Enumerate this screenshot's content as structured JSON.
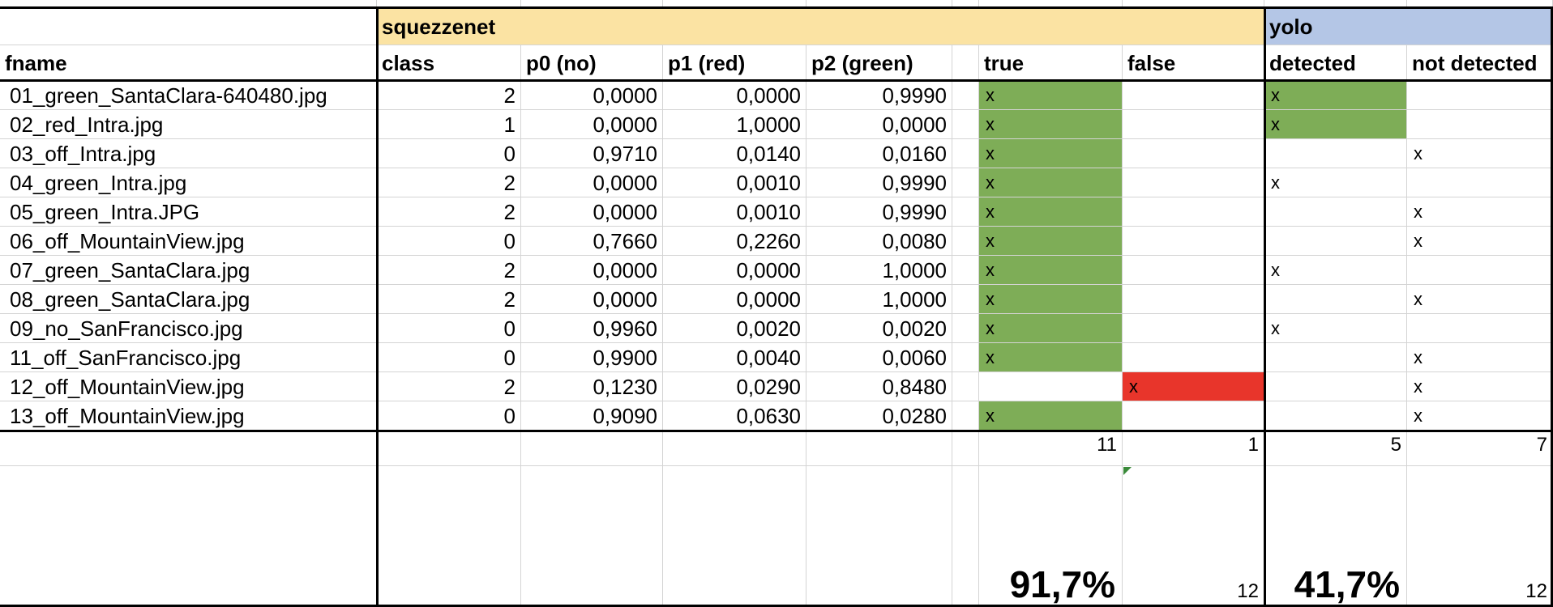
{
  "colors": {
    "squeezenet_header": "#fbe3a3",
    "yolo_header": "#b4c6e6",
    "true_fill": "#7ead57",
    "false_fill": "#e8352b",
    "grid": "#d4d4d4"
  },
  "groups": {
    "squeezenet": "squezzenet",
    "yolo": "yolo"
  },
  "headers": [
    "fname",
    "class",
    "p0 (no)",
    "p1 (red)",
    "p2 (green)",
    "true",
    "false",
    "detected",
    "not detected"
  ],
  "rows": [
    {
      "fname": "01_green_SantaClara-640480.jpg",
      "cls": "2",
      "p0": "0,0000",
      "p1": "0,0000",
      "p2": "0,9990",
      "tru": "x",
      "fal": "",
      "det": "x",
      "nd": "",
      "det_fill": true
    },
    {
      "fname": "02_red_Intra.jpg",
      "cls": "1",
      "p0": "0,0000",
      "p1": "1,0000",
      "p2": "0,0000",
      "tru": "x",
      "fal": "",
      "det": "x",
      "nd": "",
      "det_fill": true
    },
    {
      "fname": "03_off_Intra.jpg",
      "cls": "0",
      "p0": "0,9710",
      "p1": "0,0140",
      "p2": "0,0160",
      "tru": "x",
      "fal": "",
      "det": "",
      "nd": "x",
      "det_fill": false
    },
    {
      "fname": "04_green_Intra.jpg",
      "cls": "2",
      "p0": "0,0000",
      "p1": "0,0010",
      "p2": "0,9990",
      "tru": "x",
      "fal": "",
      "det": "x",
      "nd": "",
      "det_fill": false
    },
    {
      "fname": "05_green_Intra.JPG",
      "cls": "2",
      "p0": "0,0000",
      "p1": "0,0010",
      "p2": "0,9990",
      "tru": "x",
      "fal": "",
      "det": "",
      "nd": "x",
      "det_fill": false
    },
    {
      "fname": "06_off_MountainView.jpg",
      "cls": "0",
      "p0": "0,7660",
      "p1": "0,2260",
      "p2": "0,0080",
      "tru": "x",
      "fal": "",
      "det": "",
      "nd": "x",
      "det_fill": false
    },
    {
      "fname": "07_green_SantaClara.jpg",
      "cls": "2",
      "p0": "0,0000",
      "p1": "0,0000",
      "p2": "1,0000",
      "tru": "x",
      "fal": "",
      "det": "x",
      "nd": "",
      "det_fill": false
    },
    {
      "fname": "08_green_SantaClara.jpg",
      "cls": "2",
      "p0": "0,0000",
      "p1": "0,0000",
      "p2": "1,0000",
      "tru": "x",
      "fal": "",
      "det": "",
      "nd": "x",
      "det_fill": false
    },
    {
      "fname": "09_no_SanFrancisco.jpg",
      "cls": "0",
      "p0": "0,9960",
      "p1": "0,0020",
      "p2": "0,0020",
      "tru": "x",
      "fal": "",
      "det": "x",
      "nd": "",
      "det_fill": false
    },
    {
      "fname": "11_off_SanFrancisco.jpg",
      "cls": "0",
      "p0": "0,9900",
      "p1": "0,0040",
      "p2": "0,0060",
      "tru": "x",
      "fal": "",
      "det": "",
      "nd": "x",
      "det_fill": false
    },
    {
      "fname": "12_off_MountainView.jpg",
      "cls": "2",
      "p0": "0,1230",
      "p1": "0,0290",
      "p2": "0,8480",
      "tru": "",
      "fal": "x",
      "det": "",
      "nd": "x",
      "det_fill": false
    },
    {
      "fname": "13_off_MountainView.jpg",
      "cls": "0",
      "p0": "0,9090",
      "p1": "0,0630",
      "p2": "0,0280",
      "tru": "x",
      "fal": "",
      "det": "",
      "nd": "x",
      "det_fill": false
    }
  ],
  "totals": {
    "true_count": "11",
    "false_count": "1",
    "detected_count": "5",
    "not_detected_count": "7"
  },
  "summary": {
    "squeezenet_pct": "91,7%",
    "squeezenet_total": "12",
    "yolo_pct": "41,7%",
    "yolo_total": "12"
  }
}
